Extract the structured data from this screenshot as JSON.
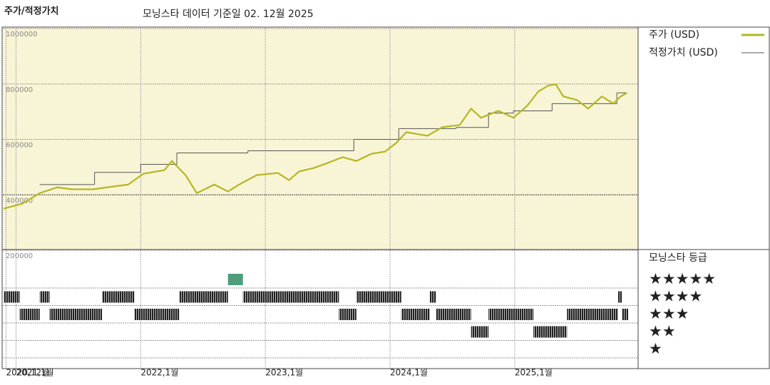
{
  "chart_data": {
    "type": "line",
    "title": "주가/적정가치",
    "subtitle": "모닝스타 데이터 기준일 02. 12월 2025",
    "xlim": [
      2020.9,
      2025.99
    ],
    "xticks": [
      {
        "value": 2020.92,
        "label": "2020,12월"
      },
      {
        "value": 2021.0,
        "label": "2021,1월"
      },
      {
        "value": 2022.0,
        "label": "2022,1월"
      },
      {
        "value": 2023.0,
        "label": "2023,1월"
      },
      {
        "value": 2024.0,
        "label": "2024,1월"
      },
      {
        "value": 2025.0,
        "label": "2025,1월"
      }
    ],
    "ylim": [
      200000,
      1000000
    ],
    "yticks": [
      1000000,
      800000,
      600000,
      400000,
      200000
    ],
    "grid": true,
    "background": "#f8f4d6",
    "series": [
      {
        "name": "주가 (USD)",
        "color": "#b4b722",
        "style": "line",
        "x": [
          2020.9,
          2021.05,
          2021.19,
          2021.33,
          2021.45,
          2021.62,
          2021.73,
          2021.9,
          2022.02,
          2022.19,
          2022.25,
          2022.36,
          2022.45,
          2022.59,
          2022.7,
          2022.79,
          2022.93,
          2023.1,
          2023.19,
          2023.27,
          2023.39,
          2023.5,
          2023.62,
          2023.73,
          2023.85,
          2023.96,
          2024.05,
          2024.13,
          2024.3,
          2024.42,
          2024.56,
          2024.65,
          2024.73,
          2024.87,
          2024.99,
          2025.1,
          2025.19,
          2025.27,
          2025.33,
          2025.39,
          2025.5,
          2025.59,
          2025.7,
          2025.79,
          2025.85,
          2025.9
        ],
        "values": [
          350000,
          368000,
          406000,
          427000,
          420000,
          420000,
          427000,
          437000,
          476000,
          489000,
          522000,
          471000,
          406000,
          437000,
          412000,
          437000,
          471000,
          479000,
          453000,
          484000,
          497000,
          515000,
          536000,
          522000,
          548000,
          556000,
          587000,
          626000,
          613000,
          644000,
          652000,
          711000,
          678000,
          703000,
          678000,
          721000,
          773000,
          794000,
          799000,
          755000,
          742000,
          711000,
          755000,
          729000,
          755000,
          768000
        ]
      },
      {
        "name": "적정가치 (USD)",
        "color": "#555555",
        "style": "step",
        "x": [
          2021.19,
          2021.63,
          2022.0,
          2022.29,
          2022.86,
          2023.71,
          2024.07,
          2024.53,
          2024.79,
          2024.99,
          2025.3,
          2025.82,
          2025.9
        ],
        "values": [
          437000,
          481000,
          510000,
          551000,
          559000,
          600000,
          639000,
          643000,
          695000,
          703000,
          729000,
          768000,
          768000
        ]
      }
    ],
    "rating_title": "모닝스타 등급",
    "rating_levels": [
      {
        "stars": 5,
        "label": "★★★★★"
      },
      {
        "stars": 4,
        "label": "★★★★"
      },
      {
        "stars": 3,
        "label": "★★★"
      },
      {
        "stars": 2,
        "label": "★★"
      },
      {
        "stars": 1,
        "label": "★"
      }
    ],
    "rating_colors": {
      "5": "#4e9e7c"
    },
    "rating_segments": [
      {
        "start": 2020.9,
        "end": 2021.03,
        "stars": 4
      },
      {
        "start": 2021.03,
        "end": 2021.19,
        "stars": 3
      },
      {
        "start": 2021.19,
        "end": 2021.27,
        "stars": 4
      },
      {
        "start": 2021.27,
        "end": 2021.69,
        "stars": 3
      },
      {
        "start": 2021.69,
        "end": 2021.95,
        "stars": 4
      },
      {
        "start": 2021.95,
        "end": 2022.31,
        "stars": 3
      },
      {
        "start": 2022.31,
        "end": 2022.7,
        "stars": 4
      },
      {
        "start": 2022.7,
        "end": 2022.82,
        "stars": 5
      },
      {
        "start": 2022.82,
        "end": 2023.59,
        "stars": 4
      },
      {
        "start": 2023.59,
        "end": 2023.73,
        "stars": 3
      },
      {
        "start": 2023.73,
        "end": 2024.09,
        "stars": 4
      },
      {
        "start": 2024.09,
        "end": 2024.32,
        "stars": 3
      },
      {
        "start": 2024.32,
        "end": 2024.37,
        "stars": 4
      },
      {
        "start": 2024.37,
        "end": 2024.65,
        "stars": 3
      },
      {
        "start": 2024.65,
        "end": 2024.79,
        "stars": 2
      },
      {
        "start": 2024.79,
        "end": 2025.15,
        "stars": 3
      },
      {
        "start": 2025.15,
        "end": 2025.42,
        "stars": 2
      },
      {
        "start": 2025.42,
        "end": 2025.83,
        "stars": 3
      },
      {
        "start": 2025.83,
        "end": 2025.86,
        "stars": 4
      },
      {
        "start": 2025.86,
        "end": 2025.91,
        "stars": 3
      }
    ]
  }
}
